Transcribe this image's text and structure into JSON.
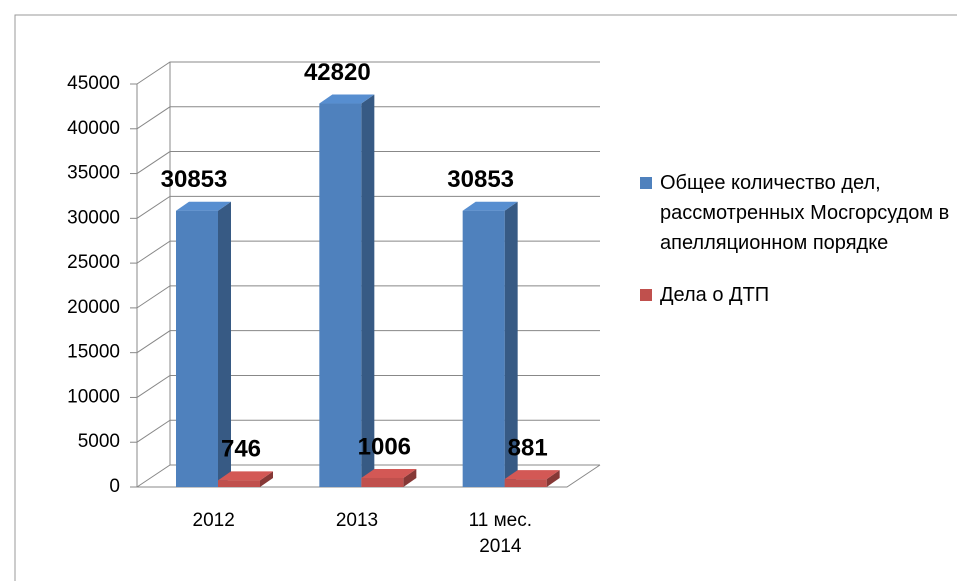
{
  "chart_data": {
    "type": "bar3d",
    "categories": [
      "2012",
      "2013",
      "11 мес. 2014"
    ],
    "series": [
      {
        "name": "Общее количество дел, рассмотренных Мосгорсудом в апелляционном порядке",
        "color": "#4f81bd",
        "values": [
          30853,
          42820,
          30853
        ]
      },
      {
        "name": "Дела о ДТП",
        "color": "#c0504d",
        "values": [
          746,
          1006,
          881
        ]
      }
    ],
    "ylim": [
      0,
      45000
    ],
    "yticks": [
      0,
      5000,
      10000,
      15000,
      20000,
      25000,
      30000,
      35000,
      40000,
      45000
    ],
    "grid": true,
    "legend": "right"
  }
}
